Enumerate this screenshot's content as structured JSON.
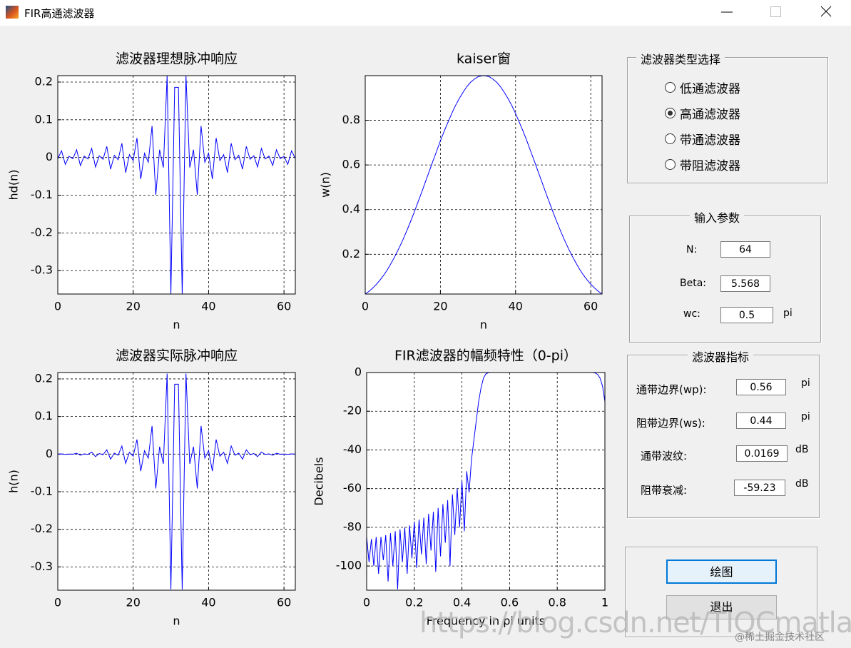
{
  "window": {
    "title": "FIR高通滤波器"
  },
  "chart_data": [
    {
      "type": "line",
      "title": "滤波器理想脉冲响应",
      "xlabel": "n",
      "ylabel": "hd(n)",
      "x": [
        0,
        1,
        2,
        3,
        4,
        5,
        6,
        7,
        8,
        9,
        10,
        11,
        12,
        13,
        14,
        15,
        16,
        17,
        18,
        19,
        20,
        21,
        22,
        23,
        24,
        25,
        26,
        27,
        28,
        29,
        30,
        31,
        32,
        33,
        34,
        35,
        36,
        37,
        38,
        39,
        40,
        41,
        42,
        43,
        44,
        45,
        46,
        47,
        48,
        49,
        50,
        51,
        52,
        53,
        54,
        55,
        56,
        57,
        58,
        59,
        60,
        61,
        62,
        63
      ],
      "series": [
        {
          "color": "#0000ff",
          "values": [
            -0.003,
            0.0178,
            -0.0184,
            0.0033,
            -0.0034,
            0.0205,
            -0.0213,
            0.0038,
            -0.004,
            0.0241,
            -0.0253,
            0.0045,
            -0.0048,
            0.0294,
            -0.031,
            0.0057,
            -0.006,
            0.0375,
            -0.0402,
            0.0075,
            -0.0081,
            0.0517,
            -0.0572,
            0.011,
            -0.0124,
            0.0836,
            -0.0988,
            0.0207,
            -0.0266,
            0.217,
            -0.362,
            0.186,
            0.186,
            -0.362,
            0.217,
            -0.0266,
            0.0207,
            -0.0988,
            0.0836,
            -0.0124,
            0.011,
            -0.0572,
            0.0517,
            -0.0081,
            0.0075,
            -0.0402,
            0.0375,
            -0.006,
            0.0057,
            -0.031,
            0.0294,
            -0.0048,
            0.0045,
            -0.0253,
            0.0241,
            -0.004,
            0.0038,
            -0.0213,
            0.0205,
            -0.0034,
            0.0033,
            -0.0184,
            0.0178,
            -0.003
          ]
        }
      ],
      "xlim": [
        0,
        63
      ],
      "ylim": [
        -0.362,
        0.217
      ],
      "xticks": [
        0,
        20,
        40,
        60
      ],
      "yticks": [
        -0.3,
        -0.2,
        -0.1,
        0,
        0.1,
        0.2
      ],
      "grid": true
    },
    {
      "type": "line",
      "title": "kaiser窗",
      "xlabel": "n",
      "ylabel": "w(n)",
      "x": [
        0,
        1,
        2,
        3,
        4,
        5,
        6,
        7,
        8,
        9,
        10,
        11,
        12,
        13,
        14,
        15,
        16,
        17,
        18,
        19,
        20,
        21,
        22,
        23,
        24,
        25,
        26,
        27,
        28,
        29,
        30,
        31,
        32,
        33,
        34,
        35,
        36,
        37,
        38,
        39,
        40,
        41,
        42,
        43,
        44,
        45,
        46,
        47,
        48,
        49,
        50,
        51,
        52,
        53,
        54,
        55,
        56,
        57,
        58,
        59,
        60,
        61,
        62,
        63
      ],
      "series": [
        {
          "color": "#0000ff",
          "values": [
            0.022,
            0.034,
            0.049,
            0.066,
            0.086,
            0.108,
            0.134,
            0.163,
            0.194,
            0.228,
            0.264,
            0.303,
            0.344,
            0.387,
            0.432,
            0.477,
            0.524,
            0.57,
            0.617,
            0.662,
            0.708,
            0.751,
            0.791,
            0.83,
            0.866,
            0.897,
            0.925,
            0.95,
            0.97,
            0.984,
            0.995,
            0.999,
            0.999,
            0.995,
            0.984,
            0.97,
            0.95,
            0.925,
            0.897,
            0.866,
            0.83,
            0.791,
            0.751,
            0.708,
            0.662,
            0.617,
            0.57,
            0.524,
            0.477,
            0.432,
            0.387,
            0.344,
            0.303,
            0.264,
            0.228,
            0.194,
            0.163,
            0.134,
            0.108,
            0.086,
            0.066,
            0.049,
            0.034,
            0.022
          ]
        }
      ],
      "xlim": [
        0,
        63
      ],
      "ylim": [
        0.022,
        1
      ],
      "xticks": [
        0,
        20,
        40,
        60
      ],
      "yticks": [
        0.2,
        0.4,
        0.6,
        0.8
      ],
      "grid": true
    },
    {
      "type": "line",
      "title": "滤波器实际脉冲响应",
      "xlabel": "n",
      "ylabel": "h(n)",
      "x": [
        0,
        1,
        2,
        3,
        4,
        5,
        6,
        7,
        8,
        9,
        10,
        11,
        12,
        13,
        14,
        15,
        16,
        17,
        18,
        19,
        20,
        21,
        22,
        23,
        24,
        25,
        26,
        27,
        28,
        29,
        30,
        31,
        32,
        33,
        34,
        35,
        36,
        37,
        38,
        39,
        40,
        41,
        42,
        43,
        44,
        45,
        46,
        47,
        48,
        49,
        50,
        51,
        52,
        53,
        54,
        55,
        56,
        57,
        58,
        59,
        60,
        61,
        62,
        63
      ],
      "series": [
        {
          "color": "#0000ff",
          "values": [
            -0.0001,
            0.0006,
            -0.0009,
            0.0002,
            -0.0003,
            0.0022,
            -0.0029,
            0.0006,
            -0.0008,
            0.0055,
            -0.0067,
            0.0014,
            -0.0017,
            0.0114,
            -0.0134,
            0.0027,
            -0.0031,
            0.0214,
            -0.0248,
            0.005,
            -0.0057,
            0.0388,
            -0.0453,
            0.0091,
            -0.0107,
            0.075,
            -0.0914,
            0.0197,
            -0.0258,
            0.214,
            -0.36,
            0.186,
            0.186,
            -0.36,
            0.214,
            -0.0258,
            0.0197,
            -0.0914,
            0.075,
            -0.0107,
            0.0091,
            -0.0453,
            0.0388,
            -0.0057,
            0.005,
            -0.0248,
            0.0214,
            -0.0031,
            0.0027,
            -0.0134,
            0.0114,
            -0.0017,
            0.0014,
            -0.0067,
            0.0055,
            -0.0008,
            0.0006,
            -0.0029,
            0.0022,
            -0.0003,
            0.0002,
            -0.0009,
            0.0006,
            -0.0001
          ]
        }
      ],
      "xlim": [
        0,
        63
      ],
      "ylim": [
        -0.362,
        0.217
      ],
      "xticks": [
        0,
        20,
        40,
        60
      ],
      "yticks": [
        -0.3,
        -0.2,
        -0.1,
        0,
        0.1,
        0.2
      ],
      "grid": true
    },
    {
      "type": "line",
      "title": "FIR滤波器的幅频特性（0-pi）",
      "xlabel": "Frequency in pi units",
      "ylabel": "Decibels",
      "x": [
        0,
        0.01,
        0.02,
        0.03,
        0.04,
        0.05,
        0.06,
        0.07,
        0.08,
        0.09,
        0.1,
        0.11,
        0.12,
        0.13,
        0.14,
        0.15,
        0.16,
        0.17,
        0.18,
        0.19,
        0.2,
        0.21,
        0.22,
        0.23,
        0.24,
        0.25,
        0.26,
        0.27,
        0.28,
        0.29,
        0.3,
        0.31,
        0.32,
        0.33,
        0.34,
        0.35,
        0.36,
        0.37,
        0.38,
        0.39,
        0.4,
        0.41,
        0.42,
        0.43,
        0.44,
        0.45,
        0.46,
        0.47,
        0.48,
        0.49,
        0.5,
        0.51,
        0.52,
        0.53,
        0.54,
        0.55,
        0.56,
        0.57,
        0.58,
        0.59,
        0.6,
        0.61,
        0.62,
        0.63,
        0.64,
        0.65,
        0.66,
        0.67,
        0.68,
        0.69,
        0.7,
        0.71,
        0.72,
        0.73,
        0.74,
        0.75,
        0.76,
        0.77,
        0.78,
        0.79,
        0.8,
        0.81,
        0.82,
        0.83,
        0.84,
        0.85,
        0.86,
        0.87,
        0.88,
        0.89,
        0.9,
        0.91,
        0.92,
        0.93,
        0.94,
        0.95,
        0.96,
        0.97,
        0.98,
        0.99,
        1
      ],
      "series": [
        {
          "color": "#0000ff",
          "values": [
            -85,
            -98,
            -86,
            -100,
            -85,
            -104,
            -85,
            -97,
            -84,
            -108,
            -83,
            -100,
            -82,
            -112,
            -81,
            -98,
            -80,
            -104,
            -79,
            -96,
            -77,
            -101,
            -76,
            -94,
            -75,
            -99,
            -73,
            -92,
            -72,
            -103,
            -70,
            -95,
            -68,
            -88,
            -66,
            -100,
            -63,
            -84,
            -60,
            -80,
            -56,
            -82,
            -51,
            -62,
            -45,
            -35,
            -25,
            -15,
            -8,
            -3,
            -0.8,
            -0.1,
            0,
            0,
            0,
            0,
            0,
            0,
            0,
            0,
            0,
            0,
            0,
            0,
            0,
            0,
            0,
            0,
            0,
            0,
            0,
            0,
            0,
            0,
            0,
            0,
            0,
            0,
            0,
            0,
            0,
            0,
            0,
            0,
            0,
            0,
            0,
            0,
            0,
            0,
            0,
            0,
            0,
            0,
            0,
            0,
            -0.3,
            -1,
            -3,
            -7,
            -15
          ]
        }
      ],
      "xlim": [
        0,
        1
      ],
      "ylim": [
        -112.5,
        0
      ],
      "xticks": [
        0,
        0.2,
        0.4,
        0.6,
        0.8,
        1
      ],
      "yticks": [
        -100,
        -80,
        -60,
        -40,
        -20,
        0
      ],
      "grid": true
    }
  ],
  "filter_type": {
    "title": "滤波器类型选择",
    "options": [
      "低通滤波器",
      "高通滤波器",
      "带通滤波器",
      "带阻滤波器"
    ],
    "selected": 1
  },
  "input_params": {
    "title": "输入参数",
    "n_label": "N:",
    "n_value": 64,
    "beta_label": "Beta:",
    "beta_value": 5.568,
    "wc_label": "wc:",
    "wc_value": 0.5,
    "wc_unit": "pi"
  },
  "filter_specs": {
    "title": "滤波器指标",
    "rows": [
      {
        "label": "通带边界(wp):",
        "value": 0.56,
        "unit": "pi"
      },
      {
        "label": "阻带边界(ws):",
        "value": 0.44,
        "unit": "pi"
      },
      {
        "label": "通带波纹:",
        "value": 0.0169,
        "unit": "dB"
      },
      {
        "label": "阻带衰减:",
        "value": -59.23,
        "unit": "dB"
      }
    ]
  },
  "buttons": {
    "plot": "绘图",
    "exit": "退出"
  },
  "watermark": {
    "url": "https://blog.csdn.net/TIQCmatlab",
    "source": "@稀土掘金技术社区"
  }
}
